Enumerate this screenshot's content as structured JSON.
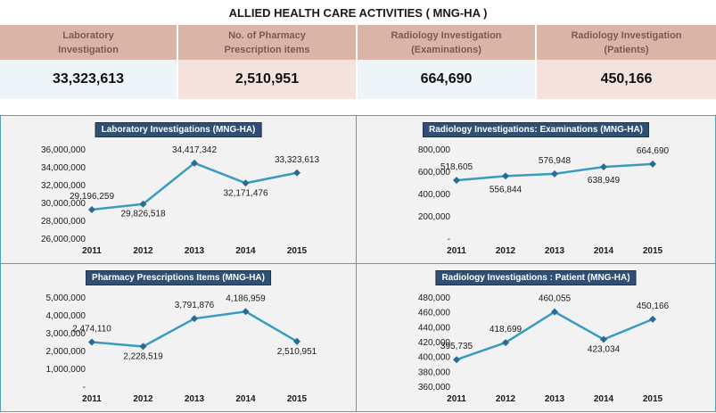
{
  "title": "ALLIED HEALTH CARE ACTIVITIES ( MNG-HA )",
  "summary": {
    "headers": [
      [
        "Laboratory",
        "Investigation"
      ],
      [
        "No. of Pharmacy",
        "Prescription items"
      ],
      [
        "Radiology Investigation",
        "(Examinations)"
      ],
      [
        "Radiology Investigation",
        "(Patients)"
      ]
    ],
    "values": [
      "33,323,613",
      "2,510,951",
      "664,690",
      "450,166"
    ]
  },
  "colors": {
    "line": "#3a9bc0",
    "marker": "#2b6a91",
    "header_bg": "#dbb4a8",
    "panel_border": "#4ea1b8",
    "title_bg": "#2f4f73"
  },
  "chart_data": [
    {
      "type": "line",
      "title": "Laboratory Investigations (MNG-HA)",
      "categories": [
        "2011",
        "2012",
        "2013",
        "2014",
        "2015"
      ],
      "values": [
        29196259,
        29826518,
        34417342,
        32171476,
        33323613
      ],
      "labels": [
        "29,196,259",
        "29,826,518",
        "34,417,342",
        "32,171,476",
        "33,323,613"
      ],
      "ylim": [
        26000000,
        36000000
      ],
      "yticks": [
        "26,000,000",
        "28,000,000",
        "30,000,000",
        "32,000,000",
        "34,000,000",
        "36,000,000"
      ],
      "ytick_values": [
        26000000,
        28000000,
        30000000,
        32000000,
        34000000,
        36000000
      ],
      "grid": false,
      "legend": "none"
    },
    {
      "type": "line",
      "title": "Radiology Investigations: Examinations (MNG-HA)",
      "categories": [
        "2011",
        "2012",
        "2013",
        "2014",
        "2015"
      ],
      "values": [
        518605,
        556844,
        576948,
        638949,
        664690
      ],
      "labels": [
        "518,605",
        "556,844",
        "576,948",
        "638,949",
        "664,690"
      ],
      "ylim": [
        0,
        800000
      ],
      "yticks": [
        "-",
        "200,000",
        "400,000",
        "600,000",
        "800,000"
      ],
      "ytick_values": [
        0,
        200000,
        400000,
        600000,
        800000
      ],
      "grid": false,
      "legend": "none"
    },
    {
      "type": "line",
      "title": "Pharmacy Prescriptions Items  (MNG-HA)",
      "categories": [
        "2011",
        "2012",
        "2013",
        "2014",
        "2015"
      ],
      "values": [
        2474110,
        2228519,
        3791876,
        4186959,
        2510951
      ],
      "labels": [
        "2,474,110",
        "2,228,519",
        "3,791,876",
        "4,186,959",
        "2,510,951"
      ],
      "ylim": [
        0,
        5000000
      ],
      "yticks": [
        "-",
        "1,000,000",
        "2,000,000",
        "3,000,000",
        "4,000,000",
        "5,000,000"
      ],
      "ytick_values": [
        0,
        1000000,
        2000000,
        3000000,
        4000000,
        5000000
      ],
      "grid": false,
      "legend": "none"
    },
    {
      "type": "line",
      "title": "Radiology Investigations : Patient (MNG-HA)",
      "categories": [
        "2011",
        "2012",
        "2013",
        "2014",
        "2015"
      ],
      "values": [
        395735,
        418699,
        460055,
        423034,
        450166
      ],
      "labels": [
        "395,735",
        "418,699",
        "460,055",
        "423,034",
        "450,166"
      ],
      "ylim": [
        360000,
        480000
      ],
      "yticks": [
        "360,000",
        "380,000",
        "400,000",
        "420,000",
        "440,000",
        "460,000",
        "480,000"
      ],
      "ytick_values": [
        360000,
        380000,
        400000,
        420000,
        440000,
        460000,
        480000
      ],
      "grid": false,
      "legend": "none"
    }
  ]
}
